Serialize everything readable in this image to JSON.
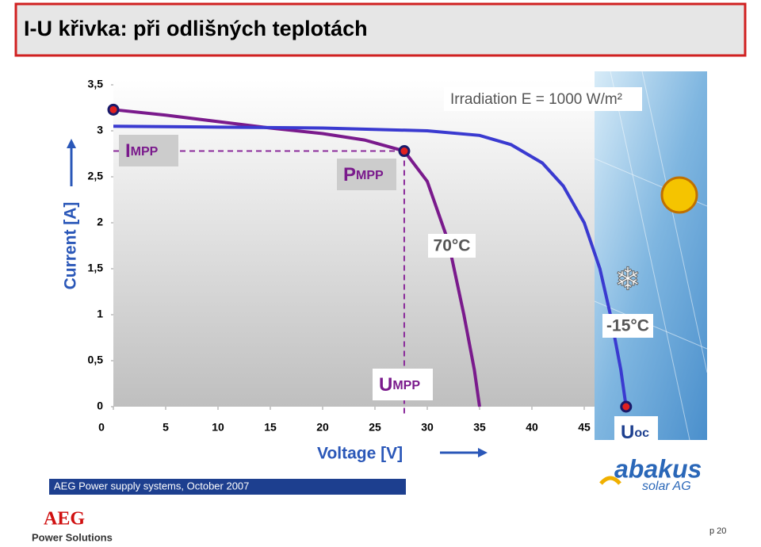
{
  "header": {
    "title": "I-U křivka: při odlišných teplotách"
  },
  "chart_data": {
    "type": "line",
    "irradiation": "Irradiation E = 1000 W/m²",
    "xlabel": "Voltage [V]",
    "ylabel": "Current [A]",
    "xlim": [
      0,
      50
    ],
    "ylim": [
      0,
      3.5
    ],
    "xticks": [
      0,
      5,
      10,
      15,
      20,
      25,
      30,
      35,
      40,
      45
    ],
    "yticks": [
      0,
      {
        "value": 0.5,
        "label": "0,5"
      },
      1,
      {
        "value": 1.5,
        "label": "1,5"
      },
      2,
      {
        "value": 2.5,
        "label": "2,5"
      },
      3,
      {
        "value": 3.5,
        "label": "3,5"
      }
    ],
    "series": [
      {
        "name": "70°C",
        "color": "#7a1a8c",
        "x": [
          0,
          5,
          10,
          15,
          20,
          24,
          27.8,
          30,
          32,
          33.5,
          34.5,
          35
        ],
        "values": [
          3.23,
          3.17,
          3.1,
          3.03,
          2.97,
          2.9,
          2.78,
          2.45,
          1.8,
          1.0,
          0.4,
          0
        ]
      },
      {
        "name": "-15°C",
        "color": "#3a3ad0",
        "x": [
          0,
          10,
          20,
          30,
          35,
          38,
          41,
          43,
          45,
          46.5,
          47.5,
          48.5,
          49
        ],
        "values": [
          3.05,
          3.04,
          3.03,
          3.0,
          2.95,
          2.85,
          2.65,
          2.4,
          2.0,
          1.5,
          1.0,
          0.4,
          0
        ]
      }
    ],
    "annotations": {
      "impp": {
        "main": "I",
        "sub": "MPP"
      },
      "pmpp": {
        "main": "P",
        "sub": "MPP"
      },
      "umpp": {
        "main": "U",
        "sub": "MPP"
      },
      "uoc": {
        "main": "U",
        "sub": "oc"
      }
    }
  },
  "footer": {
    "bar": "AEG Power supply systems, October 2007",
    "logo": "AEG",
    "logo_sub": "Power Solutions",
    "partner": "abakus",
    "partner_sub": "solar AG",
    "page": "p 20"
  }
}
